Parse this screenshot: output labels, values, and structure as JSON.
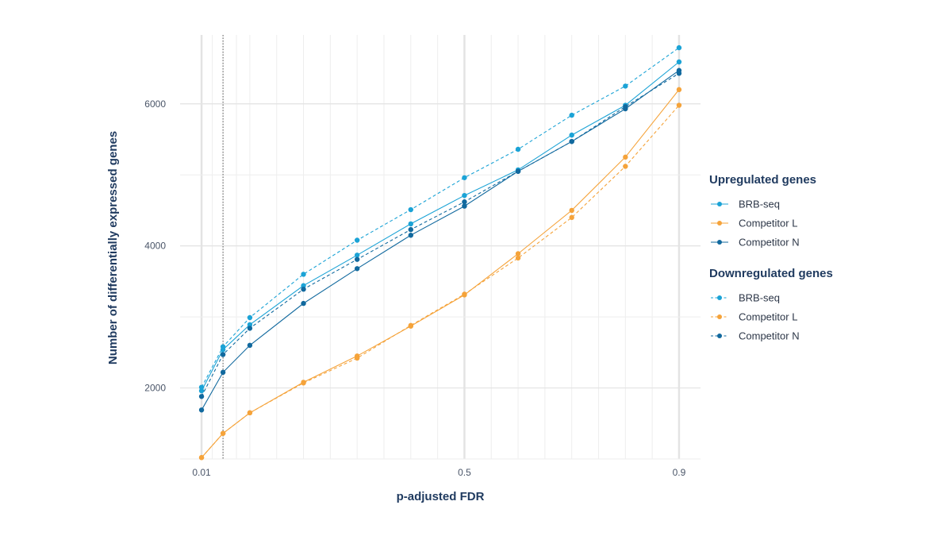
{
  "chart_data": {
    "type": "line",
    "xlabel": "p-adjusted FDR",
    "ylabel": "Number of differentially expressed genes",
    "x": [
      0.01,
      0.05,
      0.1,
      0.2,
      0.3,
      0.4,
      0.5,
      0.6,
      0.7,
      0.8,
      0.9
    ],
    "x_tick_labels": [
      {
        "value": 0.01,
        "label": "0.01"
      },
      {
        "value": 0.5,
        "label": "0.5"
      },
      {
        "value": 0.9,
        "label": "0.9"
      }
    ],
    "xlim": [
      -0.03,
      0.94
    ],
    "ylim": [
      1000,
      6970
    ],
    "y_tick_labels": [
      {
        "value": 2000,
        "label": "2000"
      },
      {
        "value": 4000,
        "label": "4000"
      },
      {
        "value": 6000,
        "label": "6000"
      }
    ],
    "threshold_line_x": 0.05,
    "colors": {
      "brb": "#1ba3d6",
      "competitor_l": "#f5a33a",
      "competitor_n": "#11699e",
      "grid_major": "#e3e3e3",
      "grid_minor": "#eeeeee",
      "text_dark": "#1f3a5f"
    },
    "series": [
      {
        "name": "BRB-seq",
        "group": "Upregulated genes",
        "color_key": "brb",
        "dashed": false,
        "values": [
          1960,
          2540,
          2890,
          3440,
          3870,
          4310,
          4710,
          5070,
          5560,
          5980,
          6590
        ]
      },
      {
        "name": "Competitor L",
        "group": "Upregulated genes",
        "color_key": "competitor_l",
        "dashed": false,
        "values": [
          1020,
          1360,
          1650,
          2080,
          2450,
          2870,
          3310,
          3890,
          4500,
          5250,
          6200
        ]
      },
      {
        "name": "Competitor N",
        "group": "Upregulated genes",
        "color_key": "competitor_n",
        "dashed": false,
        "values": [
          1690,
          2220,
          2600,
          3190,
          3680,
          4150,
          4560,
          5050,
          5470,
          5930,
          6470
        ]
      },
      {
        "name": "BRB-seq",
        "group": "Downregulated genes",
        "color_key": "brb",
        "dashed": true,
        "values": [
          2010,
          2580,
          2990,
          3600,
          4080,
          4510,
          4960,
          5360,
          5840,
          6250,
          6790
        ]
      },
      {
        "name": "Competitor L",
        "group": "Downregulated genes",
        "color_key": "competitor_l",
        "dashed": true,
        "values": [
          1020,
          1360,
          1650,
          2070,
          2420,
          2880,
          3320,
          3830,
          4400,
          5120,
          5980
        ]
      },
      {
        "name": "Competitor N",
        "group": "Downregulated genes",
        "color_key": "competitor_n",
        "dashed": true,
        "values": [
          1880,
          2470,
          2840,
          3390,
          3810,
          4230,
          4620,
          5050,
          5470,
          5960,
          6430
        ]
      }
    ],
    "legend": {
      "position": "right",
      "groups": [
        {
          "title": "Upregulated genes",
          "dashed": false,
          "items": [
            {
              "label": "BRB-seq",
              "color_key": "brb"
            },
            {
              "label": "Competitor L",
              "color_key": "competitor_l"
            },
            {
              "label": "Competitor N",
              "color_key": "competitor_n"
            }
          ]
        },
        {
          "title": "Downregulated genes",
          "dashed": true,
          "items": [
            {
              "label": "BRB-seq",
              "color_key": "brb"
            },
            {
              "label": "Competitor L",
              "color_key": "competitor_l"
            },
            {
              "label": "Competitor N",
              "color_key": "competitor_n"
            }
          ]
        }
      ]
    }
  }
}
